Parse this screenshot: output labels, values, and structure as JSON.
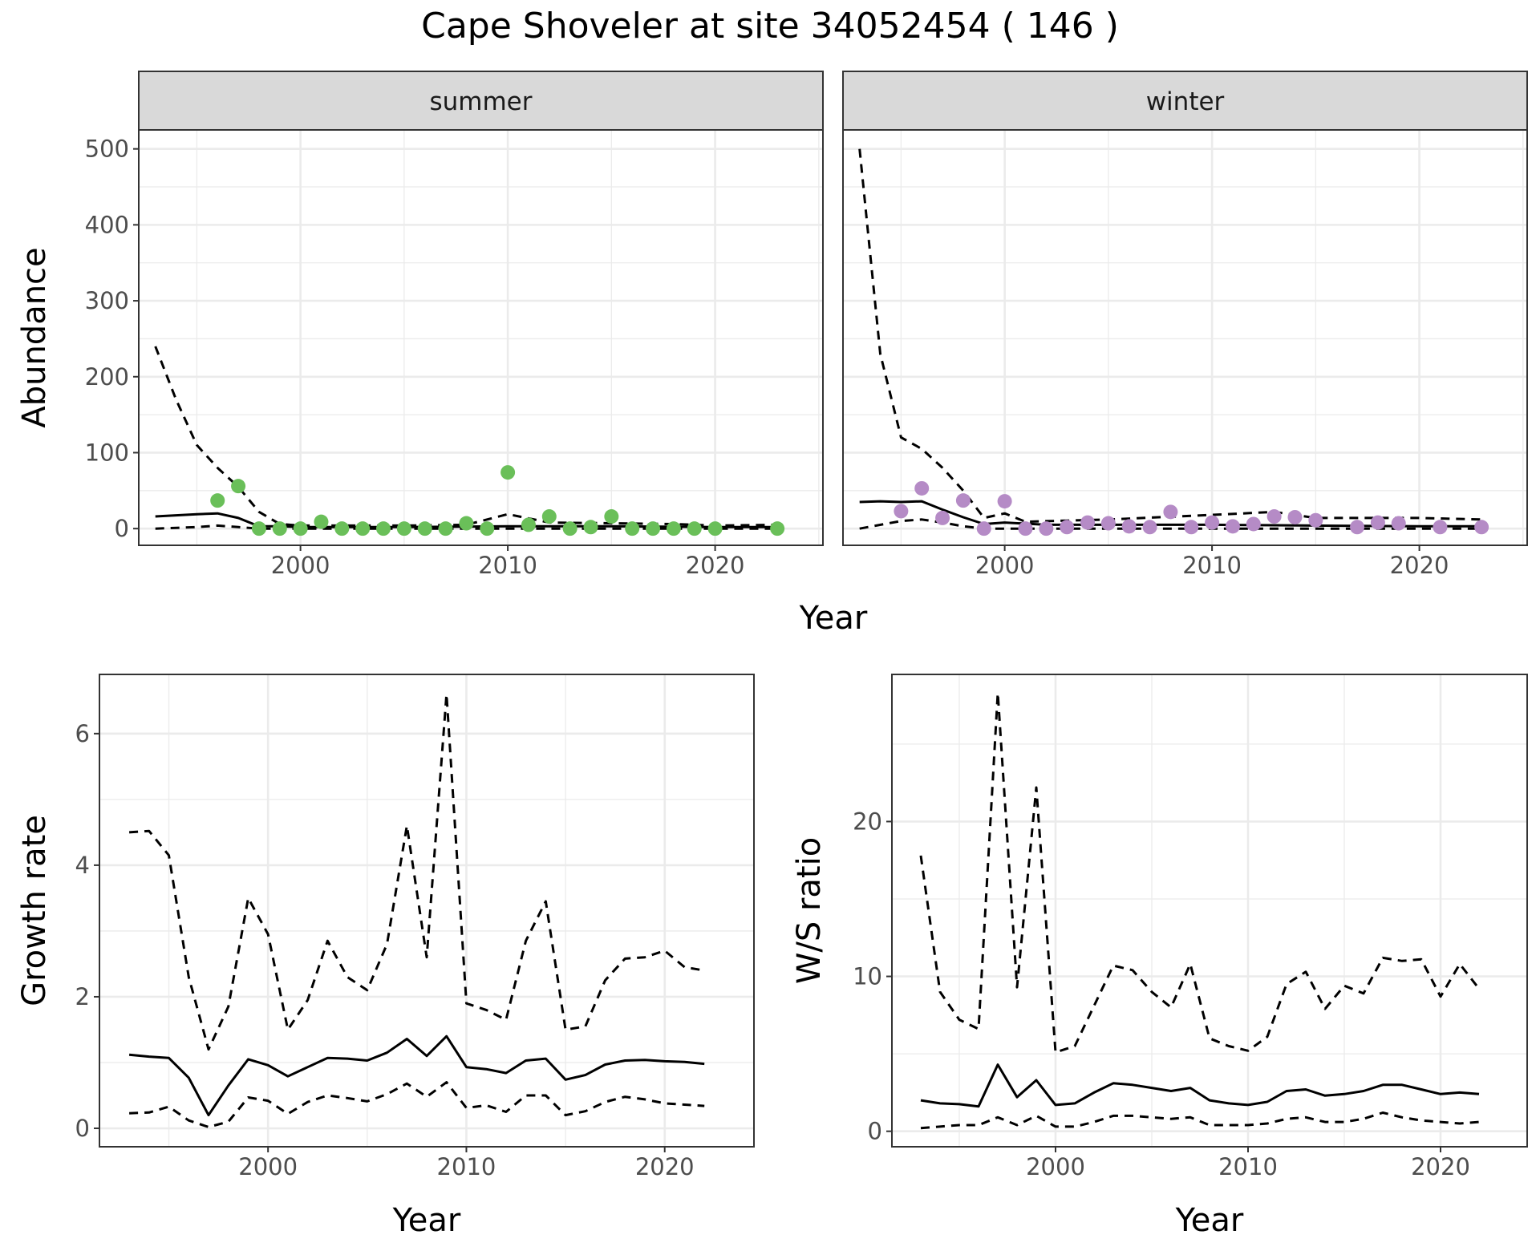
{
  "title": "Cape Shoveler at site 34052454 ( 146 )",
  "colors": {
    "summer_points": "#6abf59",
    "winter_points": "#b58bc6",
    "line": "#000000",
    "strip_fill": "#d9d9d9",
    "grid_major": "#ebebeb"
  },
  "chart_data": [
    {
      "id": "abundance",
      "type": "scatter",
      "title": "Cape Shoveler at site 34052454 ( 146 )",
      "xlabel": "Year",
      "ylabel": "Abundance",
      "xlim": [
        1992.2,
        2025.2
      ],
      "ylim": [
        -22,
        525
      ],
      "x_ticks": [
        2000,
        2010,
        2020
      ],
      "y_ticks": [
        0,
        100,
        200,
        300,
        400,
        500
      ],
      "grid": true,
      "facets": [
        {
          "label": "summer",
          "point_color": "#6abf59",
          "points": {
            "x": [
              1996,
              1997,
              1998,
              1999,
              2000,
              2001,
              2002,
              2003,
              2004,
              2005,
              2006,
              2007,
              2008,
              2009,
              2010,
              2011,
              2012,
              2013,
              2014,
              2015,
              2016,
              2017,
              2018,
              2019,
              2020,
              2023
            ],
            "y": [
              37,
              56,
              0,
              0,
              0,
              9,
              0,
              0,
              0,
              0,
              0,
              0,
              7,
              0,
              74,
              5,
              16,
              0,
              2,
              16,
              0,
              0,
              0,
              0,
              0,
              0
            ]
          },
          "lines": [
            {
              "style": "solid",
              "x": [
                1993,
                1995,
                1996,
                1997,
                1998,
                1999,
                2000,
                2005,
                2010,
                2015,
                2020,
                2023
              ],
              "y": [
                16,
                19,
                20,
                14,
                3,
                3,
                2,
                2,
                3,
                3,
                2,
                2
              ]
            },
            {
              "style": "dashed",
              "x": [
                1993,
                1994,
                1995,
                1996,
                1997,
                1998,
                1999,
                2000,
                2005,
                2008,
                2010,
                2012,
                2015,
                2018,
                2020,
                2023
              ],
              "y": [
                240,
                170,
                110,
                80,
                55,
                22,
                6,
                4,
                4,
                5,
                19,
                8,
                7,
                6,
                4,
                5
              ]
            },
            {
              "style": "dashed",
              "x": [
                1993,
                1995,
                1996,
                1997,
                1998,
                1999,
                2000,
                2005,
                2010,
                2015,
                2020,
                2023
              ],
              "y": [
                0,
                2,
                4,
                2,
                0,
                0,
                0,
                0,
                0,
                0,
                0,
                0
              ]
            }
          ]
        },
        {
          "label": "winter",
          "point_color": "#b58bc6",
          "points": {
            "x": [
              1995,
              1996,
              1997,
              1998,
              1999,
              2000,
              2001,
              2002,
              2003,
              2004,
              2005,
              2006,
              2007,
              2008,
              2009,
              2010,
              2011,
              2012,
              2013,
              2014,
              2015,
              2017,
              2018,
              2019,
              2021,
              2023
            ],
            "y": [
              23,
              53,
              14,
              37,
              0,
              36,
              0,
              0,
              2,
              8,
              7,
              3,
              2,
              22,
              2,
              8,
              3,
              6,
              16,
              15,
              11,
              2,
              8,
              7,
              2,
              2
            ]
          },
          "lines": [
            {
              "style": "solid",
              "x": [
                1993,
                1994,
                1995,
                1996,
                1997,
                1998,
                1999,
                2000,
                2002,
                2005,
                2010,
                2015,
                2020,
                2023
              ],
              "y": [
                35,
                36,
                35,
                36,
                25,
                15,
                6,
                8,
                5,
                5,
                5,
                4,
                3,
                3
              ]
            },
            {
              "style": "dashed",
              "x": [
                1993,
                1994,
                1995,
                1996,
                1997,
                1998,
                1999,
                2000,
                2001,
                2005,
                2010,
                2013,
                2015,
                2020,
                2023
              ],
              "y": [
                500,
                230,
                120,
                105,
                80,
                50,
                14,
                20,
                9,
                12,
                18,
                22,
                14,
                14,
                12
              ]
            },
            {
              "style": "dashed",
              "x": [
                1993,
                1995,
                1996,
                1997,
                1998,
                1999,
                2000,
                2005,
                2010,
                2015,
                2020,
                2023
              ],
              "y": [
                0,
                10,
                12,
                8,
                3,
                0,
                0,
                0,
                0,
                0,
                0,
                0
              ]
            }
          ]
        }
      ]
    },
    {
      "id": "growth",
      "type": "line",
      "xlabel": "Year",
      "ylabel": "Growth rate",
      "xlim": [
        1991.5,
        2024.5
      ],
      "ylim": [
        -0.28,
        6.9
      ],
      "x_ticks": [
        2000,
        2010,
        2020
      ],
      "y_ticks": [
        0,
        2,
        4,
        6
      ],
      "grid": true,
      "lines": [
        {
          "style": "solid",
          "x": [
            1993,
            1994,
            1995,
            1996,
            1997,
            1998,
            1999,
            2000,
            2001,
            2002,
            2003,
            2004,
            2005,
            2006,
            2007,
            2008,
            2009,
            2010,
            2011,
            2012,
            2013,
            2014,
            2015,
            2016,
            2017,
            2018,
            2019,
            2020,
            2021,
            2022
          ],
          "y": [
            1.12,
            1.09,
            1.07,
            0.77,
            0.2,
            0.65,
            1.05,
            0.96,
            0.79,
            0.93,
            1.07,
            1.06,
            1.03,
            1.15,
            1.36,
            1.1,
            1.4,
            0.93,
            0.9,
            0.84,
            1.03,
            1.06,
            0.74,
            0.81,
            0.97,
            1.03,
            1.04,
            1.02,
            1.01,
            0.98
          ]
        },
        {
          "style": "dashed",
          "x": [
            1993,
            1994,
            1995,
            1996,
            1997,
            1998,
            1999,
            2000,
            2001,
            2002,
            2003,
            2004,
            2005,
            2006,
            2007,
            2008,
            2009,
            2010,
            2011,
            2012,
            2013,
            2014,
            2015,
            2016,
            2017,
            2018,
            2019,
            2020,
            2021,
            2022
          ],
          "y": [
            4.5,
            4.52,
            4.15,
            2.3,
            1.2,
            1.85,
            3.5,
            2.95,
            1.5,
            1.95,
            2.85,
            2.3,
            2.1,
            2.8,
            4.6,
            2.6,
            6.6,
            1.9,
            1.8,
            1.65,
            2.85,
            3.45,
            1.5,
            1.55,
            2.25,
            2.58,
            2.6,
            2.7,
            2.45,
            2.4
          ]
        },
        {
          "style": "dashed",
          "x": [
            1993,
            1994,
            1995,
            1996,
            1997,
            1998,
            1999,
            2000,
            2001,
            2002,
            2003,
            2004,
            2005,
            2006,
            2007,
            2008,
            2009,
            2010,
            2011,
            2012,
            2013,
            2014,
            2015,
            2016,
            2017,
            2018,
            2019,
            2020,
            2021,
            2022
          ],
          "y": [
            0.23,
            0.24,
            0.33,
            0.12,
            0.02,
            0.1,
            0.47,
            0.42,
            0.22,
            0.4,
            0.5,
            0.46,
            0.41,
            0.52,
            0.68,
            0.48,
            0.7,
            0.31,
            0.35,
            0.25,
            0.5,
            0.5,
            0.2,
            0.26,
            0.4,
            0.48,
            0.44,
            0.38,
            0.36,
            0.34
          ]
        }
      ]
    },
    {
      "id": "ws_ratio",
      "type": "line",
      "xlabel": "Year",
      "ylabel": "W/S ratio",
      "xlim": [
        1991.5,
        2024.5
      ],
      "ylim": [
        -1.0,
        29.5
      ],
      "x_ticks": [
        2000,
        2010,
        2020
      ],
      "y_ticks": [
        0,
        10,
        20
      ],
      "grid": true,
      "lines": [
        {
          "style": "solid",
          "x": [
            1993,
            1994,
            1995,
            1996,
            1997,
            1998,
            1999,
            2000,
            2001,
            2002,
            2003,
            2004,
            2005,
            2006,
            2007,
            2008,
            2009,
            2010,
            2011,
            2012,
            2013,
            2014,
            2015,
            2016,
            2017,
            2018,
            2019,
            2020,
            2021,
            2022
          ],
          "y": [
            2.0,
            1.8,
            1.75,
            1.6,
            4.3,
            2.2,
            3.3,
            1.7,
            1.8,
            2.5,
            3.1,
            3.0,
            2.8,
            2.6,
            2.8,
            2.0,
            1.8,
            1.7,
            1.9,
            2.6,
            2.7,
            2.3,
            2.4,
            2.6,
            3.0,
            3.0,
            2.7,
            2.4,
            2.5,
            2.4
          ]
        },
        {
          "style": "dashed",
          "x": [
            1993,
            1994,
            1995,
            1996,
            1997,
            1998,
            1999,
            2000,
            2001,
            2002,
            2003,
            2004,
            2005,
            2006,
            2007,
            2008,
            2009,
            2010,
            2011,
            2012,
            2013,
            2014,
            2015,
            2016,
            2017,
            2018,
            2019,
            2020,
            2021,
            2022
          ],
          "y": [
            17.8,
            9.0,
            7.2,
            6.6,
            28.3,
            9.3,
            22.2,
            5.1,
            5.5,
            8.1,
            10.7,
            10.4,
            9.0,
            8.0,
            10.8,
            6.0,
            5.5,
            5.2,
            6.1,
            9.5,
            10.3,
            7.9,
            9.4,
            8.9,
            11.2,
            11.0,
            11.1,
            8.7,
            10.8,
            9.2
          ]
        },
        {
          "style": "dashed",
          "x": [
            1993,
            1994,
            1995,
            1996,
            1997,
            1998,
            1999,
            2000,
            2001,
            2002,
            2003,
            2004,
            2005,
            2006,
            2007,
            2008,
            2009,
            2010,
            2011,
            2012,
            2013,
            2014,
            2015,
            2016,
            2017,
            2018,
            2019,
            2020,
            2021,
            2022
          ],
          "y": [
            0.2,
            0.3,
            0.4,
            0.4,
            0.9,
            0.4,
            1.0,
            0.3,
            0.3,
            0.6,
            1.0,
            1.0,
            0.9,
            0.8,
            0.9,
            0.4,
            0.4,
            0.4,
            0.5,
            0.8,
            0.9,
            0.6,
            0.6,
            0.8,
            1.2,
            0.9,
            0.7,
            0.6,
            0.5,
            0.6
          ]
        }
      ]
    }
  ]
}
